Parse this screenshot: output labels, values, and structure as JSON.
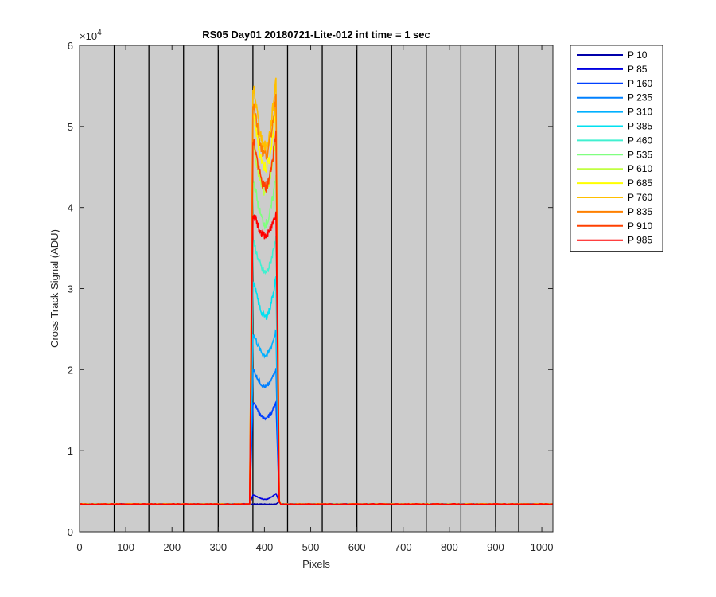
{
  "chart_data": {
    "type": "line",
    "title": "RS05 Day01 20180721-Lite-012 int time = 1 sec",
    "xlabel": "Pixels",
    "ylabel": "Cross Track Signal (ADU)",
    "y_exponent_label": "×10",
    "y_exponent_power": "4",
    "xlim": [
      0,
      1024
    ],
    "ylim": [
      0,
      60000
    ],
    "x_ticks": [
      0,
      100,
      200,
      300,
      400,
      500,
      600,
      700,
      800,
      900,
      1000
    ],
    "y_ticks": [
      0,
      10000,
      20000,
      30000,
      40000,
      50000,
      60000
    ],
    "y_tick_labels": [
      "0",
      "1",
      "2",
      "3",
      "4",
      "5",
      "6"
    ],
    "vertical_lines_x": [
      75,
      150,
      225,
      300,
      375,
      450,
      525,
      600,
      675,
      750,
      825,
      900,
      950
    ],
    "background": "#cccccc",
    "legend_position": "outside-right",
    "baseline_adu": 3400,
    "edges": {
      "rise_start": 368,
      "rise_end": 375,
      "fall_start": 425,
      "fall_end": 432,
      "peak_left_x": 378,
      "dip_x": 402,
      "peak_right_x": 425
    },
    "series": [
      {
        "name": "P 10",
        "color": "#0000aa",
        "peak_left": 3400,
        "dip": 3400,
        "peak_right": 3400
      },
      {
        "name": "P 85",
        "color": "#0000e0",
        "peak_left": 4500,
        "dip": 4000,
        "peak_right": 4700
      },
      {
        "name": "P 160",
        "color": "#0040ff",
        "peak_left": 15800,
        "dip": 14000,
        "peak_right": 16000
      },
      {
        "name": "P 235",
        "color": "#0080ff",
        "peak_left": 19800,
        "dip": 17900,
        "peak_right": 20200
      },
      {
        "name": "P 310",
        "color": "#00b0ff",
        "peak_left": 24200,
        "dip": 21800,
        "peak_right": 24800
      },
      {
        "name": "P 385",
        "color": "#00e0f0",
        "peak_left": 30500,
        "dip": 26500,
        "peak_right": 31500
      },
      {
        "name": "P 460",
        "color": "#40f0d0",
        "peak_left": 35500,
        "dip": 32000,
        "peak_right": 36500
      },
      {
        "name": "P 535",
        "color": "#80ff80",
        "peak_left": 43000,
        "dip": 38000,
        "peak_right": 44000
      },
      {
        "name": "P 610",
        "color": "#c0ff40",
        "peak_left": 47500,
        "dip": 42000,
        "peak_right": 48500
      },
      {
        "name": "P 685",
        "color": "#ffff00",
        "peak_left": 51000,
        "dip": 45000,
        "peak_right": 52000
      },
      {
        "name": "P 760",
        "color": "#ffbf00",
        "peak_left": 54500,
        "dip": 47500,
        "peak_right": 56000
      },
      {
        "name": "P 835",
        "color": "#ff8000",
        "peak_left": 52500,
        "dip": 46500,
        "peak_right": 54000
      },
      {
        "name": "P 910",
        "color": "#ff4000",
        "peak_left": 48000,
        "dip": 42500,
        "peak_right": 49500
      },
      {
        "name": "P 985",
        "color": "#ff0000",
        "peak_left": 39000,
        "dip": 36500,
        "peak_right": 39500
      }
    ]
  }
}
